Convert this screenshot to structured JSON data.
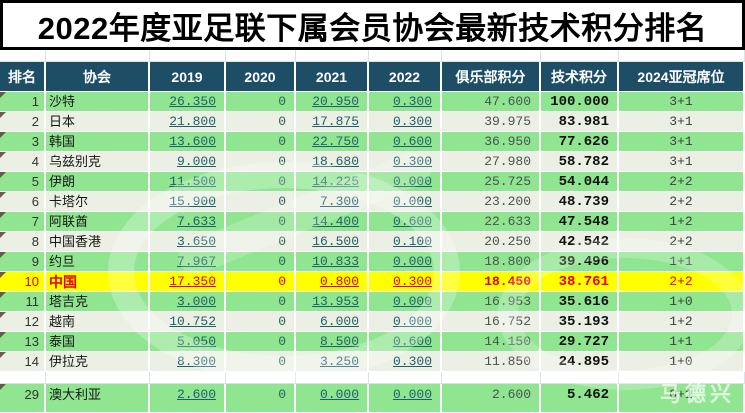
{
  "title": "2022年度亚足联下属会员协会最新技术积分排名",
  "table": {
    "columns": [
      {
        "key": "rank",
        "label": "排名"
      },
      {
        "key": "assoc",
        "label": "协会"
      },
      {
        "key": "y2019",
        "label": "2019"
      },
      {
        "key": "y2020",
        "label": "2020"
      },
      {
        "key": "y2021",
        "label": "2021"
      },
      {
        "key": "y2022",
        "label": "2022"
      },
      {
        "key": "club",
        "label": "俱乐部积分"
      },
      {
        "key": "tech",
        "label": "技术积分"
      },
      {
        "key": "slots",
        "label": "2024亚冠席位"
      }
    ],
    "rows": [
      {
        "rank": "1",
        "assoc": "沙特",
        "y2019": "26.350",
        "y2020": "0",
        "y2021": "20.950",
        "y2022": "0.300",
        "club": "47.600",
        "tech": "100.000",
        "slots": "3+1",
        "highlight": false
      },
      {
        "rank": "2",
        "assoc": "日本",
        "y2019": "21.800",
        "y2020": "0",
        "y2021": "17.875",
        "y2022": "0.300",
        "club": "39.975",
        "tech": "83.981",
        "slots": "3+1",
        "highlight": false
      },
      {
        "rank": "3",
        "assoc": "韩国",
        "y2019": "13.600",
        "y2020": "0",
        "y2021": "22.750",
        "y2022": "0.600",
        "club": "36.950",
        "tech": "77.626",
        "slots": "3+1",
        "highlight": false
      },
      {
        "rank": "4",
        "assoc": "乌兹别克",
        "y2019": "9.000",
        "y2020": "0",
        "y2021": "18.680",
        "y2022": "0.300",
        "club": "27.980",
        "tech": "58.782",
        "slots": "3+1",
        "highlight": false
      },
      {
        "rank": "5",
        "assoc": "伊朗",
        "y2019": "11.500",
        "y2020": "0",
        "y2021": "14.225",
        "y2022": "0.000",
        "club": "25.725",
        "tech": "54.044",
        "slots": "2+2",
        "highlight": false
      },
      {
        "rank": "6",
        "assoc": "卡塔尔",
        "y2019": "15.900",
        "y2020": "0",
        "y2021": "7.300",
        "y2022": "0.000",
        "club": "23.200",
        "tech": "48.739",
        "slots": "2+2",
        "highlight": false
      },
      {
        "rank": "7",
        "assoc": "阿联酋",
        "y2019": "7.633",
        "y2020": "0",
        "y2021": "14.400",
        "y2022": "0.600",
        "club": "22.633",
        "tech": "47.548",
        "slots": "1+2",
        "highlight": false
      },
      {
        "rank": "8",
        "assoc": "中国香港",
        "y2019": "3.650",
        "y2020": "0",
        "y2021": "16.500",
        "y2022": "0.100",
        "club": "20.250",
        "tech": "42.542",
        "slots": "2+2",
        "highlight": false
      },
      {
        "rank": "9",
        "assoc": "约旦",
        "y2019": "7.967",
        "y2020": "0",
        "y2021": "10.833",
        "y2022": "0.000",
        "club": "18.800",
        "tech": "39.496",
        "slots": "1+1",
        "highlight": false
      },
      {
        "rank": "10",
        "assoc": "中国",
        "y2019": "17.350",
        "y2020": "0",
        "y2021": "0.800",
        "y2022": "0.300",
        "club": "18.450",
        "tech": "38.761",
        "slots": "2+2",
        "highlight": true
      },
      {
        "rank": "11",
        "assoc": "塔吉克",
        "y2019": "3.000",
        "y2020": "0",
        "y2021": "13.953",
        "y2022": "0.000",
        "club": "16.953",
        "tech": "35.616",
        "slots": "1+0",
        "highlight": false
      },
      {
        "rank": "12",
        "assoc": "越南",
        "y2019": "10.752",
        "y2020": "0",
        "y2021": "6.000",
        "y2022": "0.000",
        "club": "16.752",
        "tech": "35.193",
        "slots": "1+2",
        "highlight": false
      },
      {
        "rank": "13",
        "assoc": "泰国",
        "y2019": "5.050",
        "y2020": "0",
        "y2021": "8.500",
        "y2022": "0.600",
        "club": "14.150",
        "tech": "29.727",
        "slots": "1+1",
        "highlight": false
      },
      {
        "rank": "14",
        "assoc": "伊拉克",
        "y2019": "8.300",
        "y2020": "0",
        "y2021": "3.250",
        "y2022": "0.300",
        "club": "11.850",
        "tech": "24.895",
        "slots": "1+0",
        "highlight": false
      },
      {
        "rank": "29",
        "assoc": "澳大利亚",
        "y2019": "2.600",
        "y2020": "0",
        "y2021": "0.000",
        "y2022": "0.000",
        "club": "2.600",
        "tech": "5.462",
        "slots": "0+1",
        "highlight": false,
        "gap_before": true
      }
    ]
  },
  "watermark": {
    "corner_text": "马德兴"
  },
  "colors": {
    "header_bg": "#1d4e66",
    "header_text": "#ffffff",
    "row_green": "#90e690",
    "row_alt": "#ecf0e4",
    "highlight_row_bg": "#ffff00",
    "highlight_text": "#e60000",
    "link_text": "#1f5f6b",
    "title_text": "#000000"
  }
}
